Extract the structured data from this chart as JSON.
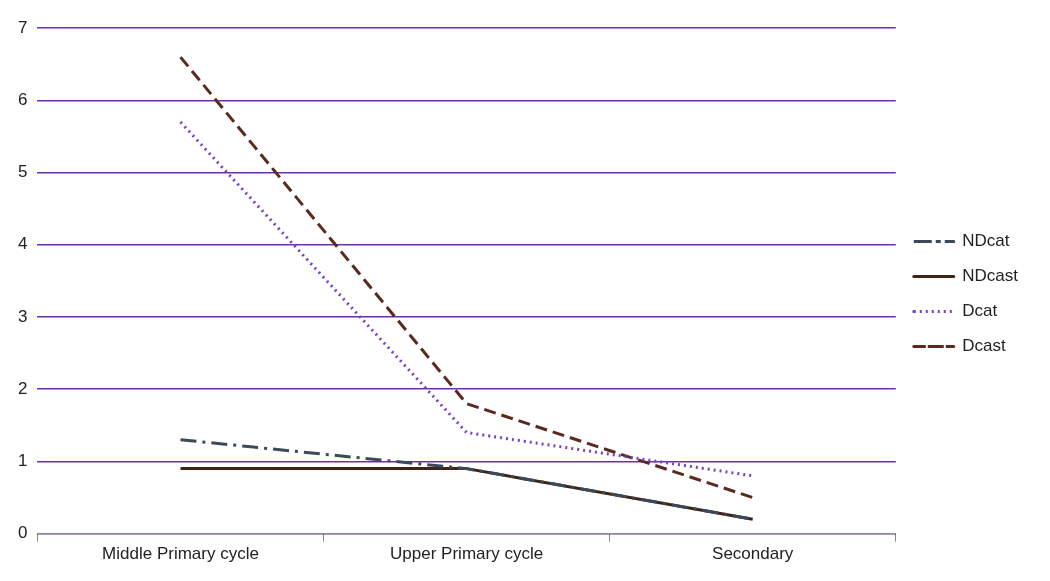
{
  "chart_data": {
    "type": "line",
    "categories": [
      "Middle Primary cycle",
      "Upper Primary cycle",
      "Secondary"
    ],
    "series": [
      {
        "name": "NDcat",
        "color": "#3b4a5a",
        "line_style": "dashdot",
        "values": [
          1.3,
          0.9,
          0.2
        ]
      },
      {
        "name": "NDcast",
        "color": "#3d2415",
        "line_style": "solid",
        "values": [
          0.9,
          0.9,
          0.2
        ]
      },
      {
        "name": "Dcat",
        "color": "#7a3fc8",
        "line_style": "dotted",
        "values": [
          5.7,
          1.4,
          0.8
        ]
      },
      {
        "name": "Dcast",
        "color": "#5a2a20",
        "line_style": "dashed",
        "values": [
          6.6,
          1.8,
          0.5
        ]
      }
    ],
    "ylim": [
      0,
      7
    ],
    "yticks": [
      0,
      1,
      2,
      3,
      4,
      5,
      6,
      7
    ],
    "grid": "y",
    "legend": "right",
    "marker": "none"
  }
}
